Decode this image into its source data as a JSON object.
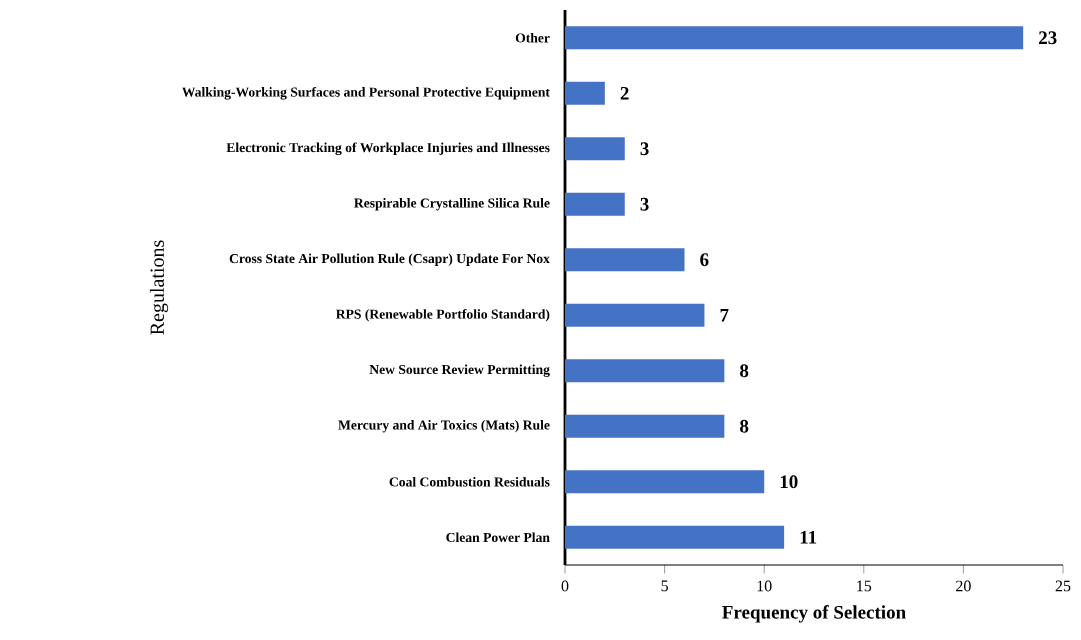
{
  "chart_data": {
    "type": "bar",
    "orientation": "horizontal",
    "categories": [
      "Other",
      "Walking-Working Surfaces and Personal Protective Equipment",
      "Electronic Tracking of Workplace Injuries and Illnesses",
      "Respirable Crystalline Silica Rule",
      "Cross State Air Pollution Rule (Csapr) Update For Nox",
      "RPS (Renewable Portfolio Standard)",
      "New Source Review Permitting",
      "Mercury and Air Toxics (Mats) Rule",
      "Coal Combustion Residuals",
      "Clean Power Plan"
    ],
    "values": [
      23,
      2,
      3,
      3,
      6,
      7,
      8,
      8,
      10,
      11
    ],
    "color": "#4472c4",
    "xlim": [
      0,
      25
    ],
    "xticks": [
      0,
      5,
      10,
      15,
      20,
      25
    ],
    "xlabel": "Frequency of Selection",
    "ylabel": "Regulations",
    "data_labels": true
  }
}
